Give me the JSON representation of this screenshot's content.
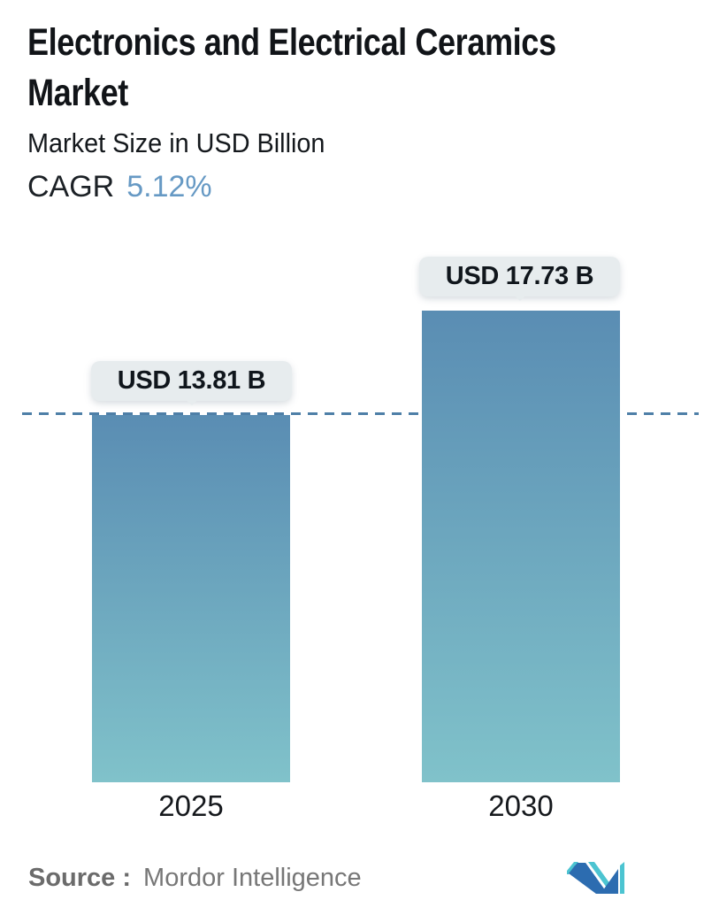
{
  "header": {
    "title_line1": "Electronics and Electrical Ceramics",
    "title_line2": "Market",
    "subtitle": "Market Size in USD Billion",
    "cagr_label": "CAGR",
    "cagr_value": "5.12%"
  },
  "chart_data": {
    "type": "bar",
    "title": "Electronics and Electrical Ceramics Market",
    "subtitle": "Market Size in USD Billion",
    "unit": "USD Billion",
    "categories": [
      "2025",
      "2030"
    ],
    "values": [
      13.81,
      17.73
    ],
    "value_labels": [
      "USD 13.81 B",
      "USD 17.73 B"
    ],
    "cagr_percent": 5.12,
    "ylim": [
      0,
      17.73
    ],
    "grid": "off",
    "legend": "none",
    "dashed_reference_line_at": 13.81,
    "bar_gradient_top": "#5a8db3",
    "bar_gradient_bottom": "#80c2ca",
    "dashed_line_color": "#4e7fa7"
  },
  "footer": {
    "source_label": "Source :",
    "source_value": "Mordor Intelligence",
    "logo_icon": "mordor-intelligence-logo"
  },
  "colors": {
    "cagr_accent": "#6699c4",
    "tooltip_bg": "#e7ecee",
    "tooltip_text": "#10161c",
    "title_text": "#111418",
    "source_text": "#777777",
    "logo_blue": "#2c6cb0",
    "logo_teal": "#4cc4d1"
  }
}
